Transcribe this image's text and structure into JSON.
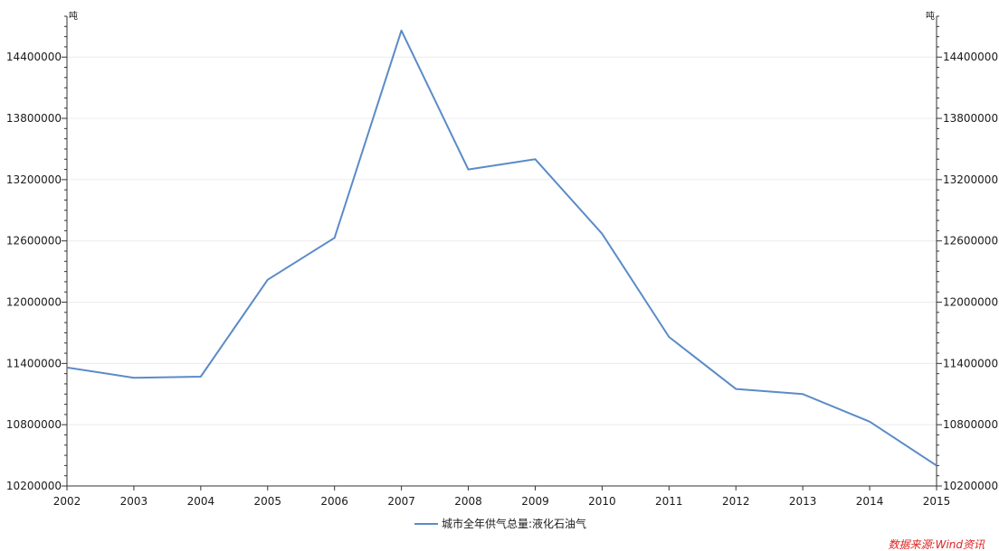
{
  "chart_data": {
    "type": "line",
    "x": [
      "2002",
      "2003",
      "2004",
      "2005",
      "2006",
      "2007",
      "2008",
      "2009",
      "2010",
      "2011",
      "2012",
      "2013",
      "2014",
      "2015"
    ],
    "series": [
      {
        "name": "城市全年供气总量:液化石油气",
        "color": "#5b8bc7",
        "values": [
          11360000,
          11260000,
          11270000,
          12220000,
          12630000,
          14660000,
          13300000,
          13400000,
          12670000,
          11660000,
          11150000,
          11100000,
          10830000,
          10400000
        ]
      }
    ],
    "y_left": {
      "unit": "吨",
      "ylim": [
        10200000,
        14800000
      ],
      "ticks": [
        "10200000",
        "10800000",
        "11400000",
        "12000000",
        "12600000",
        "13200000",
        "13800000",
        "14400000"
      ]
    },
    "y_right": {
      "unit": "吨",
      "ylim": [
        10200000,
        14800000
      ],
      "ticks": [
        "10200000",
        "10800000",
        "11400000",
        "12000000",
        "12600000",
        "13200000",
        "13800000",
        "14400000"
      ]
    },
    "grid": "horizontal",
    "legend_position": "bottom-center",
    "source": "数据来源:Wind资讯"
  }
}
